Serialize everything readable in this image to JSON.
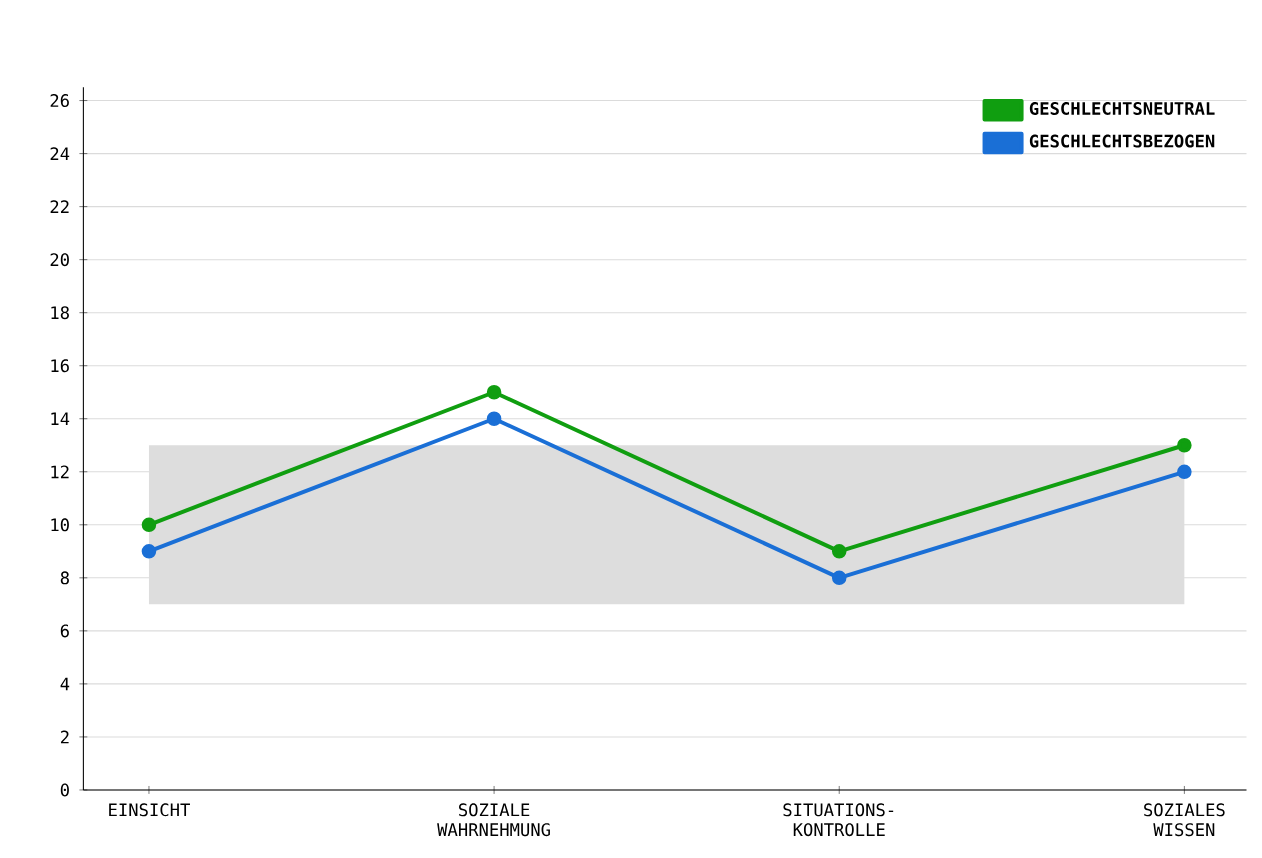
{
  "chart_data": {
    "type": "line",
    "categories": [
      "EINSICHT",
      "SOZIALE WAHRNEHMUNG",
      "SITUATIONS-KONTROLLE",
      "SOZIALES WISSEN"
    ],
    "series": [
      {
        "name": "GESCHLECHTSNEUTRAL",
        "color": "#109e10",
        "values": [
          10,
          15,
          9,
          13
        ]
      },
      {
        "name": "GESCHLECHTSBEZOGEN",
        "color": "#1a6fd6",
        "values": [
          9,
          14,
          8,
          12
        ]
      }
    ],
    "ylim": [
      0,
      26.5
    ],
    "yticks": [
      0,
      2,
      4,
      6,
      8,
      10,
      12,
      14,
      16,
      18,
      20,
      22,
      24,
      26
    ],
    "bands": [
      {
        "axis": "y",
        "from": 7,
        "to": 13,
        "color": "#dddddd"
      }
    ],
    "grid": "y",
    "legend": "top right",
    "marker": "circle",
    "line_style": "solid"
  }
}
